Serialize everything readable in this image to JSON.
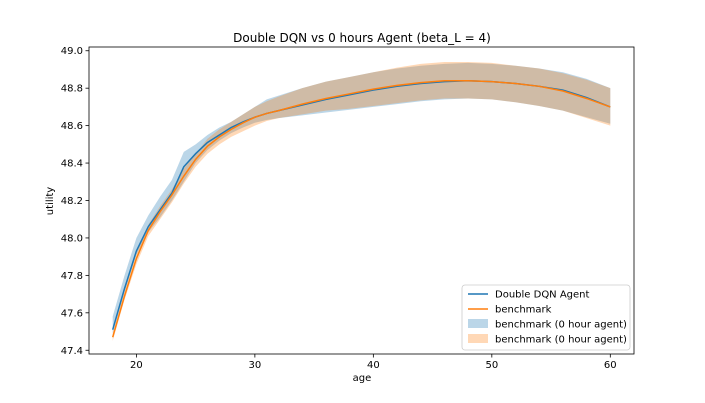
{
  "chart_data": {
    "type": "line",
    "title": "Double DQN vs 0 hours Agent (beta_L = 4)",
    "xlabel": "age",
    "ylabel": "utility",
    "xlim": [
      16,
      62
    ],
    "ylim": [
      47.38,
      49.02
    ],
    "xticks": [
      20,
      30,
      40,
      50,
      60
    ],
    "yticks": [
      47.4,
      47.6,
      47.8,
      48.0,
      48.2,
      48.4,
      48.6,
      48.8,
      49.0
    ],
    "ytick_labels": [
      "47.4",
      "47.6",
      "47.8",
      "48.0",
      "48.2",
      "48.4",
      "48.6",
      "48.8",
      "49.0"
    ],
    "legend_position": "lower-right",
    "grid": false,
    "x": [
      18,
      19,
      20,
      21,
      22,
      23,
      24,
      25,
      26,
      27,
      28,
      29,
      30,
      31,
      32,
      34,
      36,
      38,
      40,
      42,
      44,
      46,
      48,
      50,
      52,
      54,
      56,
      58,
      60
    ],
    "series": [
      {
        "name": "Double DQN Agent",
        "kind": "line",
        "color": "#1f77b4",
        "values": [
          47.51,
          47.73,
          47.93,
          48.06,
          48.15,
          48.24,
          48.38,
          48.45,
          48.51,
          48.55,
          48.59,
          48.62,
          48.645,
          48.665,
          48.68,
          48.71,
          48.74,
          48.765,
          48.79,
          48.81,
          48.825,
          48.835,
          48.84,
          48.835,
          48.825,
          48.81,
          48.79,
          48.75,
          48.7
        ]
      },
      {
        "name": "benchmark",
        "kind": "line",
        "color": "#ff7f0e",
        "values": [
          47.47,
          47.69,
          47.89,
          48.04,
          48.14,
          48.23,
          48.33,
          48.42,
          48.49,
          48.54,
          48.58,
          48.615,
          48.645,
          48.665,
          48.68,
          48.715,
          48.745,
          48.77,
          48.795,
          48.815,
          48.83,
          48.84,
          48.84,
          48.835,
          48.825,
          48.81,
          48.785,
          48.745,
          48.7
        ]
      },
      {
        "name": "benchmark (0 hour agent)",
        "kind": "band",
        "color": "#1f77b4",
        "opacity": 0.3,
        "lower": [
          47.49,
          47.71,
          47.91,
          48.03,
          48.11,
          48.2,
          48.3,
          48.4,
          48.47,
          48.52,
          48.56,
          48.59,
          48.615,
          48.63,
          48.64,
          48.655,
          48.67,
          48.685,
          48.7,
          48.715,
          48.73,
          48.74,
          48.745,
          48.74,
          48.725,
          48.705,
          48.68,
          48.645,
          48.61
        ],
        "upper": [
          47.58,
          47.8,
          48.0,
          48.12,
          48.22,
          48.31,
          48.46,
          48.5,
          48.55,
          48.59,
          48.62,
          48.66,
          48.7,
          48.74,
          48.76,
          48.8,
          48.835,
          48.86,
          48.885,
          48.905,
          48.92,
          48.93,
          48.935,
          48.93,
          48.92,
          48.905,
          48.885,
          48.85,
          48.8
        ]
      },
      {
        "name": "benchmark (0 hour agent)",
        "kind": "band",
        "color": "#ff7f0e",
        "opacity": 0.3,
        "lower": [
          47.45,
          47.67,
          47.86,
          48.01,
          48.1,
          48.19,
          48.29,
          48.38,
          48.45,
          48.5,
          48.54,
          48.57,
          48.6,
          48.625,
          48.64,
          48.66,
          48.68,
          48.69,
          48.705,
          48.72,
          48.735,
          48.745,
          48.745,
          48.74,
          48.725,
          48.705,
          48.68,
          48.64,
          48.6
        ],
        "upper": [
          47.49,
          47.72,
          47.92,
          48.07,
          48.17,
          48.26,
          48.37,
          48.45,
          48.53,
          48.58,
          48.62,
          48.66,
          48.7,
          48.73,
          48.755,
          48.8,
          48.835,
          48.86,
          48.885,
          48.91,
          48.93,
          48.94,
          48.94,
          48.935,
          48.92,
          48.905,
          48.88,
          48.845,
          48.8
        ]
      }
    ]
  },
  "colors": {
    "blue": "#1f77b4",
    "orange": "#ff7f0e",
    "band_blue": "#b8cfe3",
    "band_orange": "#f2c9a5"
  }
}
